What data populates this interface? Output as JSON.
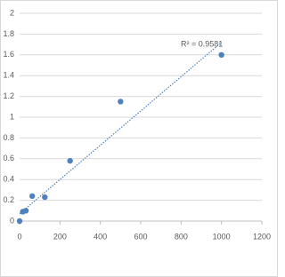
{
  "chart_data": {
    "type": "scatter",
    "annotation": "R² = 0.9581",
    "series": [
      {
        "color": "#4f81bd",
        "x": [
          0,
          15.6,
          31.25,
          62.5,
          125,
          250,
          500,
          1000
        ],
        "values": [
          0.0,
          0.09,
          0.1,
          0.24,
          0.23,
          0.58,
          1.15,
          1.6
        ]
      }
    ],
    "trendline": {
      "color": "#4f81bd",
      "x": [
        0,
        1000
      ],
      "values": [
        0.07,
        1.72
      ]
    },
    "xlim": [
      0,
      1200
    ],
    "xticks": [
      0,
      200,
      400,
      600,
      800,
      1000,
      1200
    ],
    "ylim": [
      0,
      2
    ],
    "yticks": [
      0,
      0.2,
      0.4,
      0.6,
      0.8,
      1,
      1.2,
      1.4,
      1.6,
      1.8,
      2
    ],
    "grid": true
  }
}
